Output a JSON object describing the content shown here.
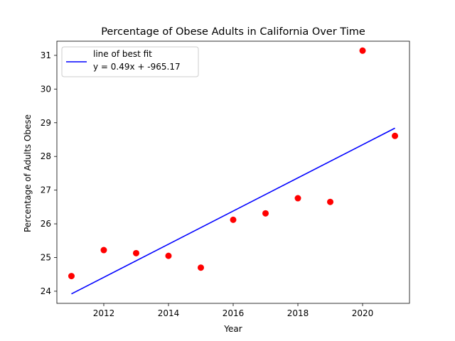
{
  "chart_data": {
    "type": "scatter",
    "title": "Percentage of Obese Adults in California Over Time",
    "xlabel": "Year",
    "ylabel": "Percentage of Adults Obese",
    "xlim": [
      2010.55,
      2021.45
    ],
    "ylim": [
      23.64,
      31.42
    ],
    "xticks": [
      2012,
      2014,
      2016,
      2018,
      2020
    ],
    "yticks": [
      24,
      25,
      26,
      27,
      28,
      29,
      30,
      31
    ],
    "grid": false,
    "legend_position": "top-left",
    "legend": {
      "label": "line of best fit",
      "equation": "y = 0.49x + -965.17"
    },
    "series": [
      {
        "type": "scatter",
        "color": "#ff0000",
        "x": [
          2011,
          2012,
          2013,
          2014,
          2015,
          2016,
          2017,
          2018,
          2019,
          2020,
          2021
        ],
        "y": [
          24.45,
          25.22,
          25.13,
          25.05,
          24.7,
          26.12,
          26.31,
          26.76,
          26.65,
          31.14,
          28.61
        ]
      },
      {
        "type": "line",
        "name": "line of best fit",
        "color": "#0000ff",
        "x": [
          2011,
          2021
        ],
        "y": [
          23.92,
          28.84
        ]
      }
    ]
  }
}
